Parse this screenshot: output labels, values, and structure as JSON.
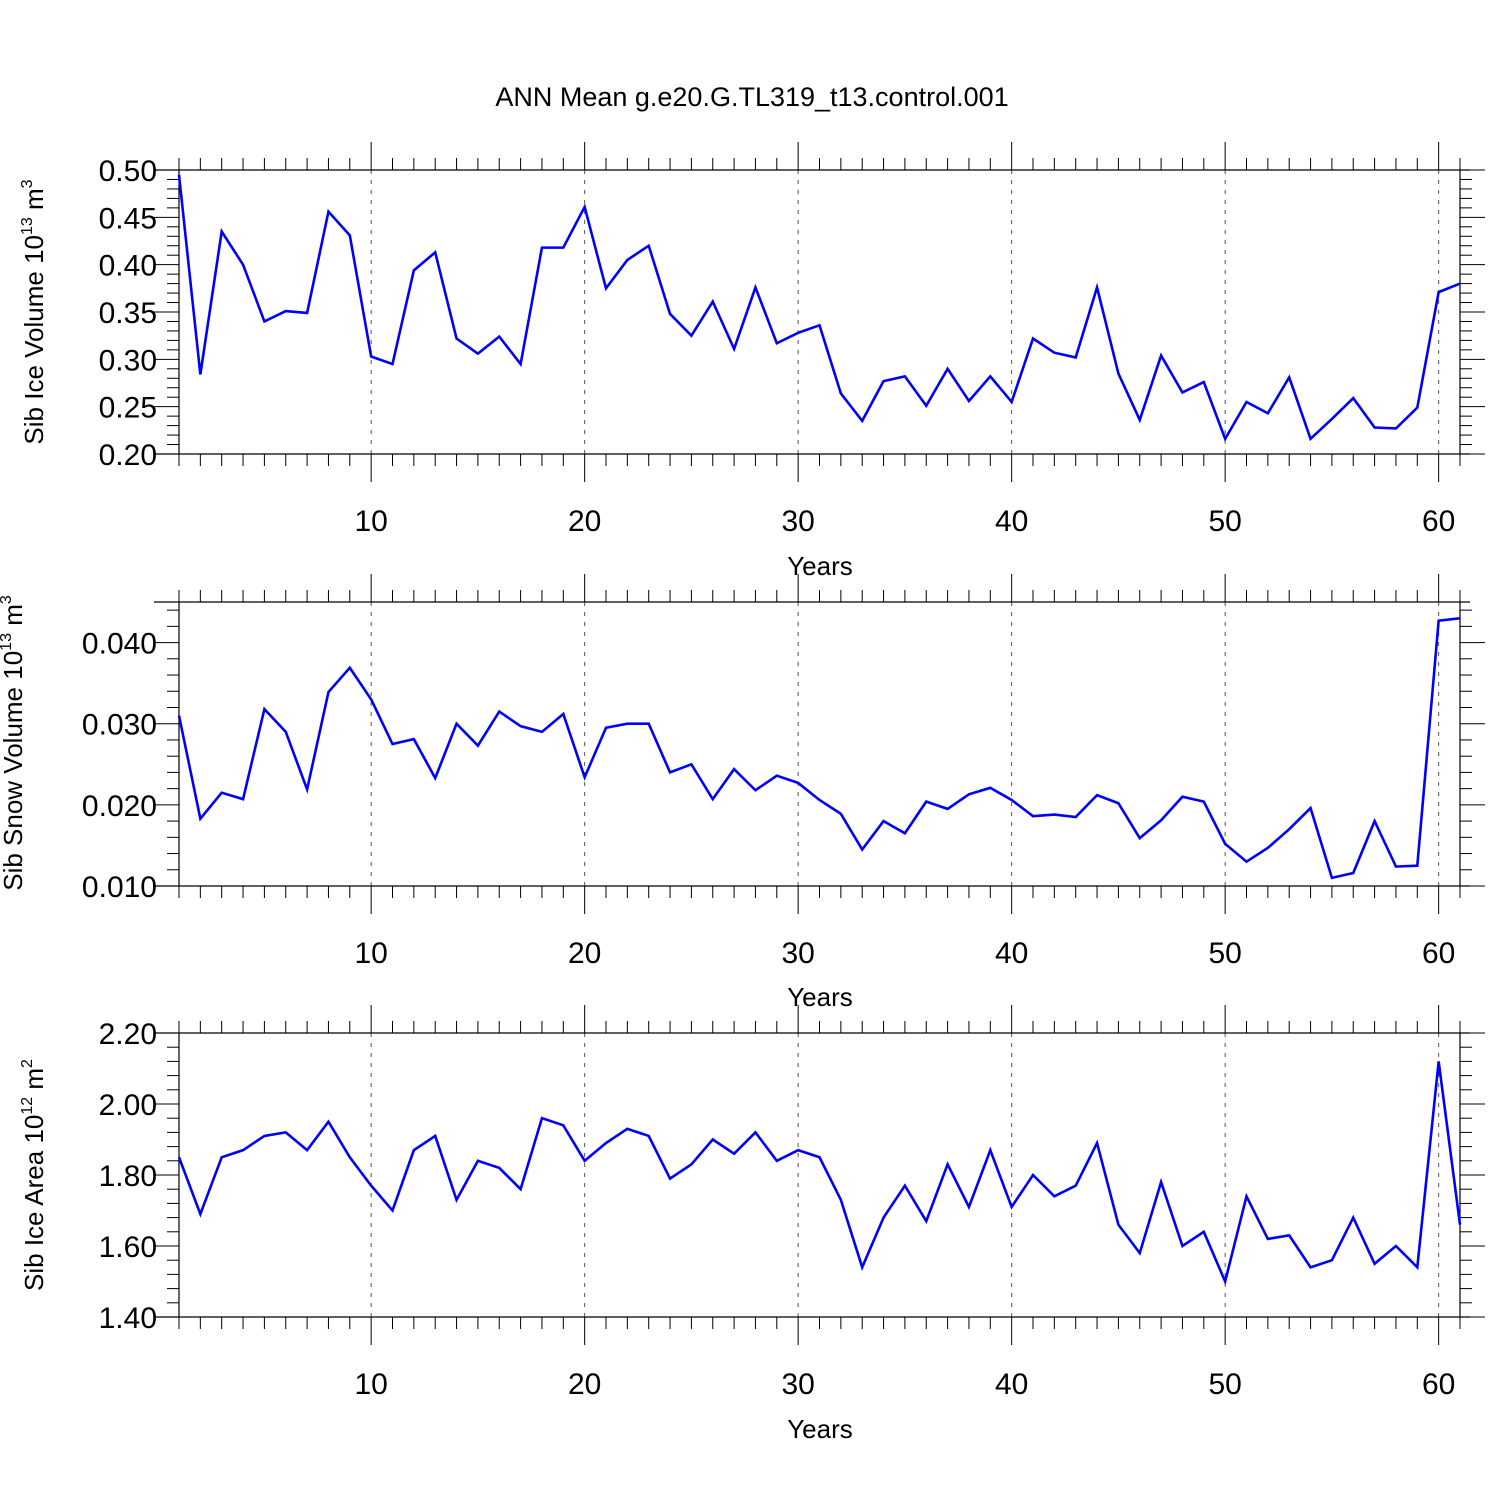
{
  "title": "ANN Mean g.e20.G.TL319_t13.control.001",
  "colors": {
    "line": "#0000ff",
    "axis": "#000000",
    "grid": "#555555"
  },
  "chart_data": [
    {
      "type": "line",
      "xlabel": "Years",
      "ylabel_main": "Sib Ice Volume 10",
      "ylabel_exp": "13",
      "ylabel_unit": " m",
      "ylabel_unit_exp": "3",
      "xlim": [
        1,
        61
      ],
      "ylim": [
        0.2,
        0.5
      ],
      "xticks": [
        10,
        20,
        30,
        40,
        50,
        60
      ],
      "yticks": [
        0.2,
        0.25,
        0.3,
        0.35,
        0.4,
        0.45,
        0.5
      ],
      "ytick_labels": [
        "0.20",
        "0.25",
        "0.30",
        "0.35",
        "0.40",
        "0.45",
        "0.50"
      ],
      "y_minor_step": 0.01,
      "grid": "vertical dashed at major x ticks",
      "x": [
        1,
        2,
        3,
        4,
        5,
        6,
        7,
        8,
        9,
        10,
        11,
        12,
        13,
        14,
        15,
        16,
        17,
        18,
        19,
        20,
        21,
        22,
        23,
        24,
        25,
        26,
        27,
        28,
        29,
        30,
        31,
        32,
        33,
        34,
        35,
        36,
        37,
        38,
        39,
        40,
        41,
        42,
        43,
        44,
        45,
        46,
        47,
        48,
        49,
        50,
        51,
        52,
        53,
        54,
        55,
        56,
        57,
        58,
        59,
        60,
        61
      ],
      "values": [
        0.495,
        0.284,
        0.435,
        0.4,
        0.34,
        0.351,
        0.349,
        0.456,
        0.431,
        0.303,
        0.295,
        0.394,
        0.413,
        0.322,
        0.306,
        0.324,
        0.295,
        0.418,
        0.418,
        0.461,
        0.375,
        0.405,
        0.42,
        0.348,
        0.325,
        0.361,
        0.311,
        0.376,
        0.317,
        0.328,
        0.336,
        0.264,
        0.235,
        0.277,
        0.282,
        0.251,
        0.29,
        0.256,
        0.282,
        0.255,
        0.322,
        0.307,
        0.302,
        0.376,
        0.285,
        0.236,
        0.304,
        0.265,
        0.276,
        0.216,
        0.255,
        0.243,
        0.281,
        0.216,
        0.237,
        0.259,
        0.228,
        0.227,
        0.249,
        0.371,
        0.38
      ]
    },
    {
      "type": "line",
      "xlabel": "Years",
      "ylabel_main": "Sib Snow Volume 10",
      "ylabel_exp": "13",
      "ylabel_unit": " m",
      "ylabel_unit_exp": "3",
      "xlim": [
        1,
        61
      ],
      "ylim": [
        0.01,
        0.045
      ],
      "xticks": [
        10,
        20,
        30,
        40,
        50,
        60
      ],
      "yticks": [
        0.01,
        0.02,
        0.03,
        0.04
      ],
      "ytick_labels": [
        "0.010",
        "0.020",
        "0.030",
        "0.040"
      ],
      "y_minor_step": 0.002,
      "grid": "vertical dashed at major x ticks",
      "x": [
        1,
        2,
        3,
        4,
        5,
        6,
        7,
        8,
        9,
        10,
        11,
        12,
        13,
        14,
        15,
        16,
        17,
        18,
        19,
        20,
        21,
        22,
        23,
        24,
        25,
        26,
        27,
        28,
        29,
        30,
        31,
        32,
        33,
        34,
        35,
        36,
        37,
        38,
        39,
        40,
        41,
        42,
        43,
        44,
        45,
        46,
        47,
        48,
        49,
        50,
        51,
        52,
        53,
        54,
        55,
        56,
        57,
        58,
        59,
        60,
        61
      ],
      "values": [
        0.031,
        0.0183,
        0.0215,
        0.0207,
        0.0318,
        0.029,
        0.0219,
        0.0339,
        0.0369,
        0.033,
        0.0275,
        0.0281,
        0.0233,
        0.03,
        0.0273,
        0.0315,
        0.0297,
        0.029,
        0.0312,
        0.0234,
        0.0295,
        0.03,
        0.03,
        0.024,
        0.025,
        0.0207,
        0.0244,
        0.0218,
        0.0236,
        0.0227,
        0.0206,
        0.0189,
        0.0145,
        0.018,
        0.0165,
        0.0204,
        0.0195,
        0.0213,
        0.0221,
        0.0206,
        0.0186,
        0.0188,
        0.0185,
        0.0212,
        0.0202,
        0.0159,
        0.0181,
        0.021,
        0.0204,
        0.0152,
        0.013,
        0.0147,
        0.017,
        0.0196,
        0.011,
        0.0116,
        0.018,
        0.0124,
        0.0125,
        0.0427,
        0.043
      ]
    },
    {
      "type": "line",
      "xlabel": "Years",
      "ylabel_main": "Sib Ice Area 10",
      "ylabel_exp": "12",
      "ylabel_unit": " m",
      "ylabel_unit_exp": "2",
      "xlim": [
        1,
        61
      ],
      "ylim": [
        1.4,
        2.2
      ],
      "xticks": [
        10,
        20,
        30,
        40,
        50,
        60
      ],
      "yticks": [
        1.4,
        1.6,
        1.8,
        2.0,
        2.2
      ],
      "ytick_labels": [
        "1.40",
        "1.60",
        "1.80",
        "2.00",
        "2.20"
      ],
      "y_minor_step": 0.04,
      "grid": "vertical dashed at major x ticks",
      "x": [
        1,
        2,
        3,
        4,
        5,
        6,
        7,
        8,
        9,
        10,
        11,
        12,
        13,
        14,
        15,
        16,
        17,
        18,
        19,
        20,
        21,
        22,
        23,
        24,
        25,
        26,
        27,
        28,
        29,
        30,
        31,
        32,
        33,
        34,
        35,
        36,
        37,
        38,
        39,
        40,
        41,
        42,
        43,
        44,
        45,
        46,
        47,
        48,
        49,
        50,
        51,
        52,
        53,
        54,
        55,
        56,
        57,
        58,
        59,
        60,
        61
      ],
      "values": [
        1.85,
        1.69,
        1.85,
        1.87,
        1.91,
        1.92,
        1.87,
        1.95,
        1.85,
        1.77,
        1.7,
        1.87,
        1.91,
        1.73,
        1.84,
        1.82,
        1.76,
        1.96,
        1.94,
        1.84,
        1.89,
        1.93,
        1.91,
        1.79,
        1.83,
        1.9,
        1.86,
        1.92,
        1.84,
        1.87,
        1.85,
        1.73,
        1.54,
        1.68,
        1.77,
        1.67,
        1.83,
        1.71,
        1.87,
        1.71,
        1.8,
        1.74,
        1.77,
        1.89,
        1.66,
        1.58,
        1.78,
        1.6,
        1.64,
        1.5,
        1.74,
        1.62,
        1.63,
        1.54,
        1.56,
        1.68,
        1.55,
        1.6,
        1.54,
        2.12,
        1.66
      ]
    }
  ]
}
